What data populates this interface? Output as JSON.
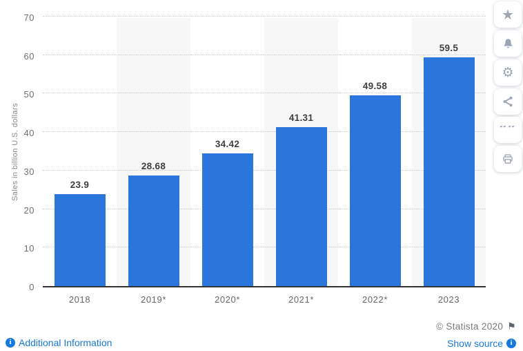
{
  "chart_data": {
    "type": "bar",
    "categories": [
      "2018",
      "2019*",
      "2020*",
      "2021*",
      "2022*",
      "2023"
    ],
    "values": [
      23.9,
      28.68,
      34.42,
      41.31,
      49.58,
      59.5
    ],
    "value_labels": [
      "23.9",
      "28.68",
      "34.42",
      "41.31",
      "49.58",
      "59.5"
    ],
    "title": "",
    "xlabel": "",
    "ylabel": "Sales in billion U.S. dollars",
    "ylim": [
      0,
      70
    ],
    "yticks": [
      0,
      10,
      20,
      30,
      40,
      50,
      60,
      70
    ],
    "grid": "horizontal-dotted",
    "legend": "none",
    "bar_color": "#2B76DC",
    "striped_columns": [
      1,
      3,
      5
    ]
  },
  "colors": {
    "bar": "#2B76DC",
    "band": "#F7F7F7",
    "grid": "#CCCCCC",
    "link": "#1778DD",
    "icon": "#9AA5B4"
  },
  "toolbar": {
    "icons": [
      {
        "name": "star-icon"
      },
      {
        "name": "bell-icon"
      },
      {
        "name": "gear-icon"
      },
      {
        "name": "share-icon"
      },
      {
        "name": "quote-icon"
      },
      {
        "name": "print-icon"
      }
    ]
  },
  "footer": {
    "additional_information_label": "Additional Information",
    "copyright": "© Statista 2020",
    "show_source_label": "Show source"
  }
}
